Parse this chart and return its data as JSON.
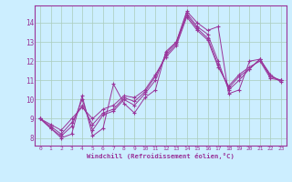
{
  "title": "",
  "xlabel": "Windchill (Refroidissement éolien,°C)",
  "background_color": "#cceeff",
  "grid_color": "#aaccbb",
  "line_color": "#993399",
  "xlim_min": -0.5,
  "xlim_max": 23.5,
  "ylim_min": 7.6,
  "ylim_max": 14.9,
  "xticks": [
    0,
    1,
    2,
    3,
    4,
    5,
    6,
    7,
    8,
    9,
    10,
    11,
    12,
    13,
    14,
    15,
    16,
    17,
    18,
    19,
    20,
    21,
    22,
    23
  ],
  "yticks": [
    8,
    9,
    10,
    11,
    12,
    13,
    14
  ],
  "series": [
    [
      9.0,
      8.5,
      8.0,
      8.2,
      10.2,
      8.1,
      8.5,
      10.8,
      9.8,
      9.3,
      10.1,
      10.5,
      12.5,
      13.0,
      14.6,
      14.0,
      13.6,
      13.8,
      10.3,
      10.5,
      12.0,
      12.1,
      11.3,
      10.9
    ],
    [
      9.0,
      8.5,
      8.1,
      8.6,
      10.0,
      8.4,
      9.2,
      9.4,
      10.0,
      9.7,
      10.3,
      11.0,
      12.4,
      13.0,
      14.5,
      13.8,
      13.4,
      12.0,
      10.5,
      11.0,
      11.6,
      12.1,
      11.2,
      11.0
    ],
    [
      9.0,
      8.6,
      8.2,
      8.8,
      9.7,
      8.7,
      9.3,
      9.5,
      10.1,
      9.9,
      10.4,
      11.2,
      12.3,
      12.9,
      14.4,
      13.7,
      13.2,
      11.8,
      10.6,
      11.2,
      11.6,
      12.1,
      11.2,
      11.0
    ],
    [
      9.0,
      8.7,
      8.4,
      9.0,
      9.6,
      9.0,
      9.5,
      9.7,
      10.2,
      10.1,
      10.5,
      11.3,
      12.2,
      12.8,
      14.3,
      13.6,
      13.1,
      11.7,
      10.7,
      11.3,
      11.7,
      12.0,
      11.1,
      11.0
    ]
  ]
}
